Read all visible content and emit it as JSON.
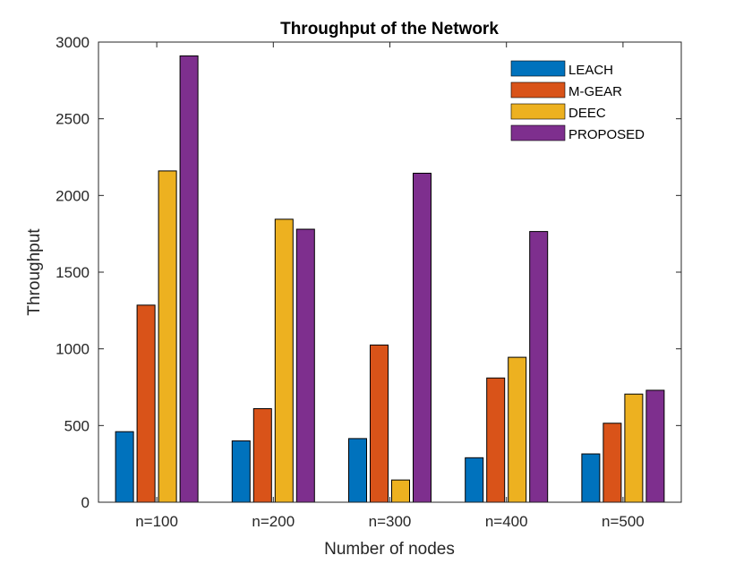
{
  "chart_data": {
    "type": "bar",
    "title": "Throughput of the Network",
    "xlabel": "Number of nodes",
    "ylabel": "Throughput",
    "categories": [
      "n=100",
      "n=200",
      "n=300",
      "n=400",
      "n=500"
    ],
    "ylim": [
      0,
      3000
    ],
    "yticks": [
      0,
      500,
      1000,
      1500,
      2000,
      2500,
      3000
    ],
    "grid": false,
    "legend_position": "top-right",
    "series": [
      {
        "name": "LEACH",
        "color": "#0072BD",
        "values": [
          460,
          400,
          415,
          290,
          315
        ]
      },
      {
        "name": "M-GEAR",
        "color": "#D95319",
        "values": [
          1285,
          610,
          1025,
          810,
          515
        ]
      },
      {
        "name": "DEEC",
        "color": "#EDB120",
        "values": [
          2160,
          1845,
          145,
          945,
          705
        ]
      },
      {
        "name": "PROPOSED",
        "color": "#7E2F8E",
        "values": [
          2910,
          1780,
          2145,
          1765,
          730
        ]
      }
    ]
  }
}
